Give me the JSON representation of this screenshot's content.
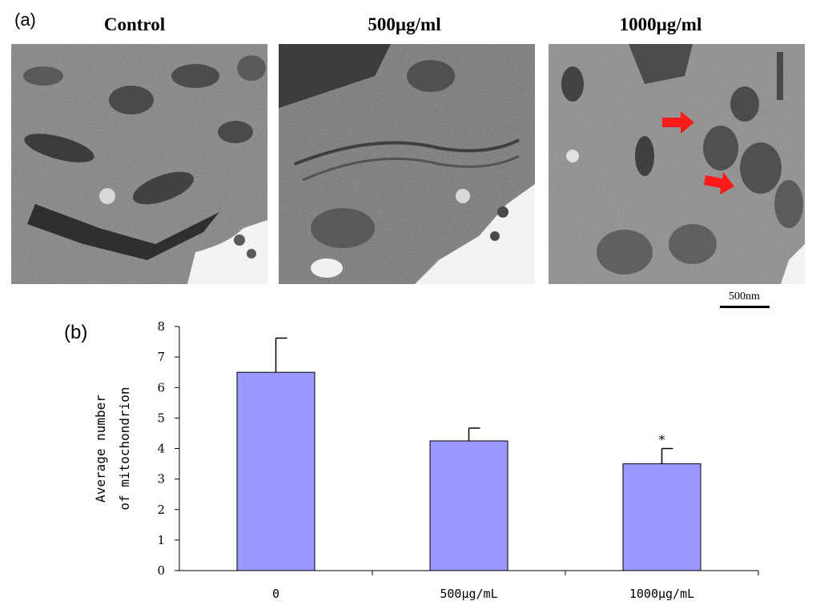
{
  "panel_a": {
    "label": "(a)",
    "images": [
      {
        "title": "Control"
      },
      {
        "title": "500µg/ml"
      },
      {
        "title": "1000µg/ml"
      }
    ],
    "scale_bar": "500nm",
    "arrow_color": "#ff1a1a"
  },
  "panel_b": {
    "label": "(b)"
  },
  "chart_data": {
    "type": "bar",
    "categories": [
      "0",
      "500μg/mL",
      "1000μg/mL"
    ],
    "values": [
      6.5,
      4.25,
      3.5
    ],
    "errors": [
      1.12,
      0.42,
      0.5
    ],
    "annotations": [
      "",
      "",
      "*"
    ],
    "ylabel_lines": [
      "Average number",
      "of mitochondrion"
    ],
    "ylim": [
      0,
      8
    ],
    "yticks": [
      "0",
      "1",
      "2",
      "3",
      "4",
      "5",
      "6",
      "7",
      "8"
    ],
    "bar_color": "#9999ff",
    "grid": false,
    "legend": "none"
  }
}
